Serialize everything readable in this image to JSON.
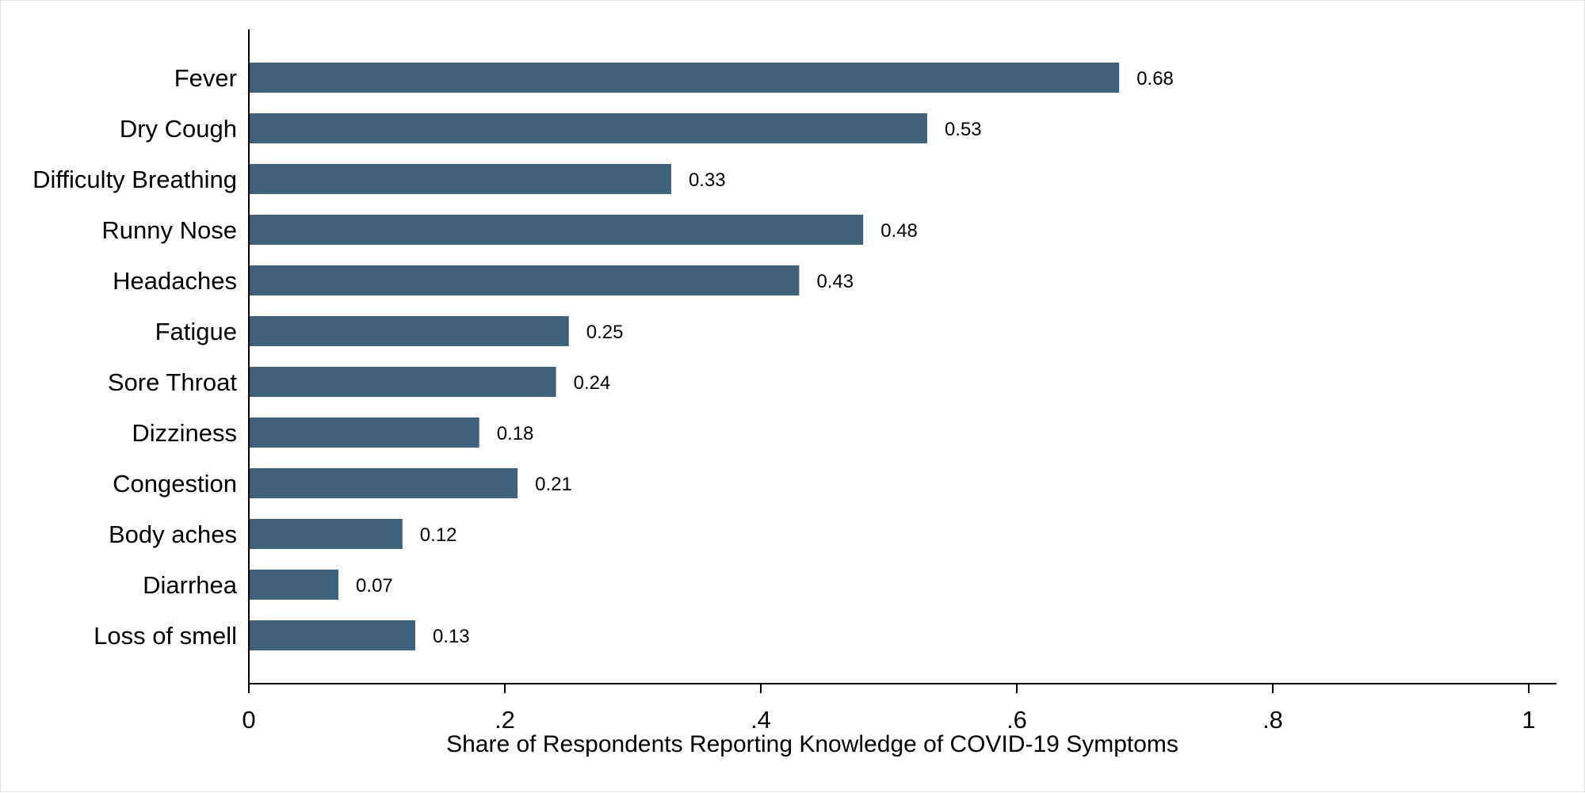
{
  "chart_data": {
    "type": "bar",
    "orientation": "horizontal",
    "categories": [
      "Fever",
      "Dry Cough",
      "Difficulty Breathing",
      "Runny Nose",
      "Headaches",
      "Fatigue",
      "Sore Throat",
      "Dizziness",
      "Congestion",
      "Body aches",
      "Diarrhea",
      "Loss of smell"
    ],
    "values": [
      0.68,
      0.53,
      0.33,
      0.48,
      0.43,
      0.25,
      0.24,
      0.18,
      0.21,
      0.12,
      0.07,
      0.13
    ],
    "value_labels": [
      "0.68",
      "0.53",
      "0.33",
      "0.48",
      "0.43",
      "0.25",
      "0.24",
      "0.18",
      "0.21",
      "0.12",
      "0.07",
      "0.13"
    ],
    "x_ticks": [
      0,
      0.2,
      0.4,
      0.6,
      0.8,
      1
    ],
    "x_tick_labels": [
      "0",
      ".2",
      ".4",
      ".6",
      ".8",
      "1"
    ],
    "xlabel": "Share of Respondents Reporting Knowledge of COVID-19 Symptoms",
    "ylabel": "",
    "title": "",
    "xlim": [
      0,
      1.02
    ],
    "grid": false,
    "bar_color": "#3f617c"
  }
}
